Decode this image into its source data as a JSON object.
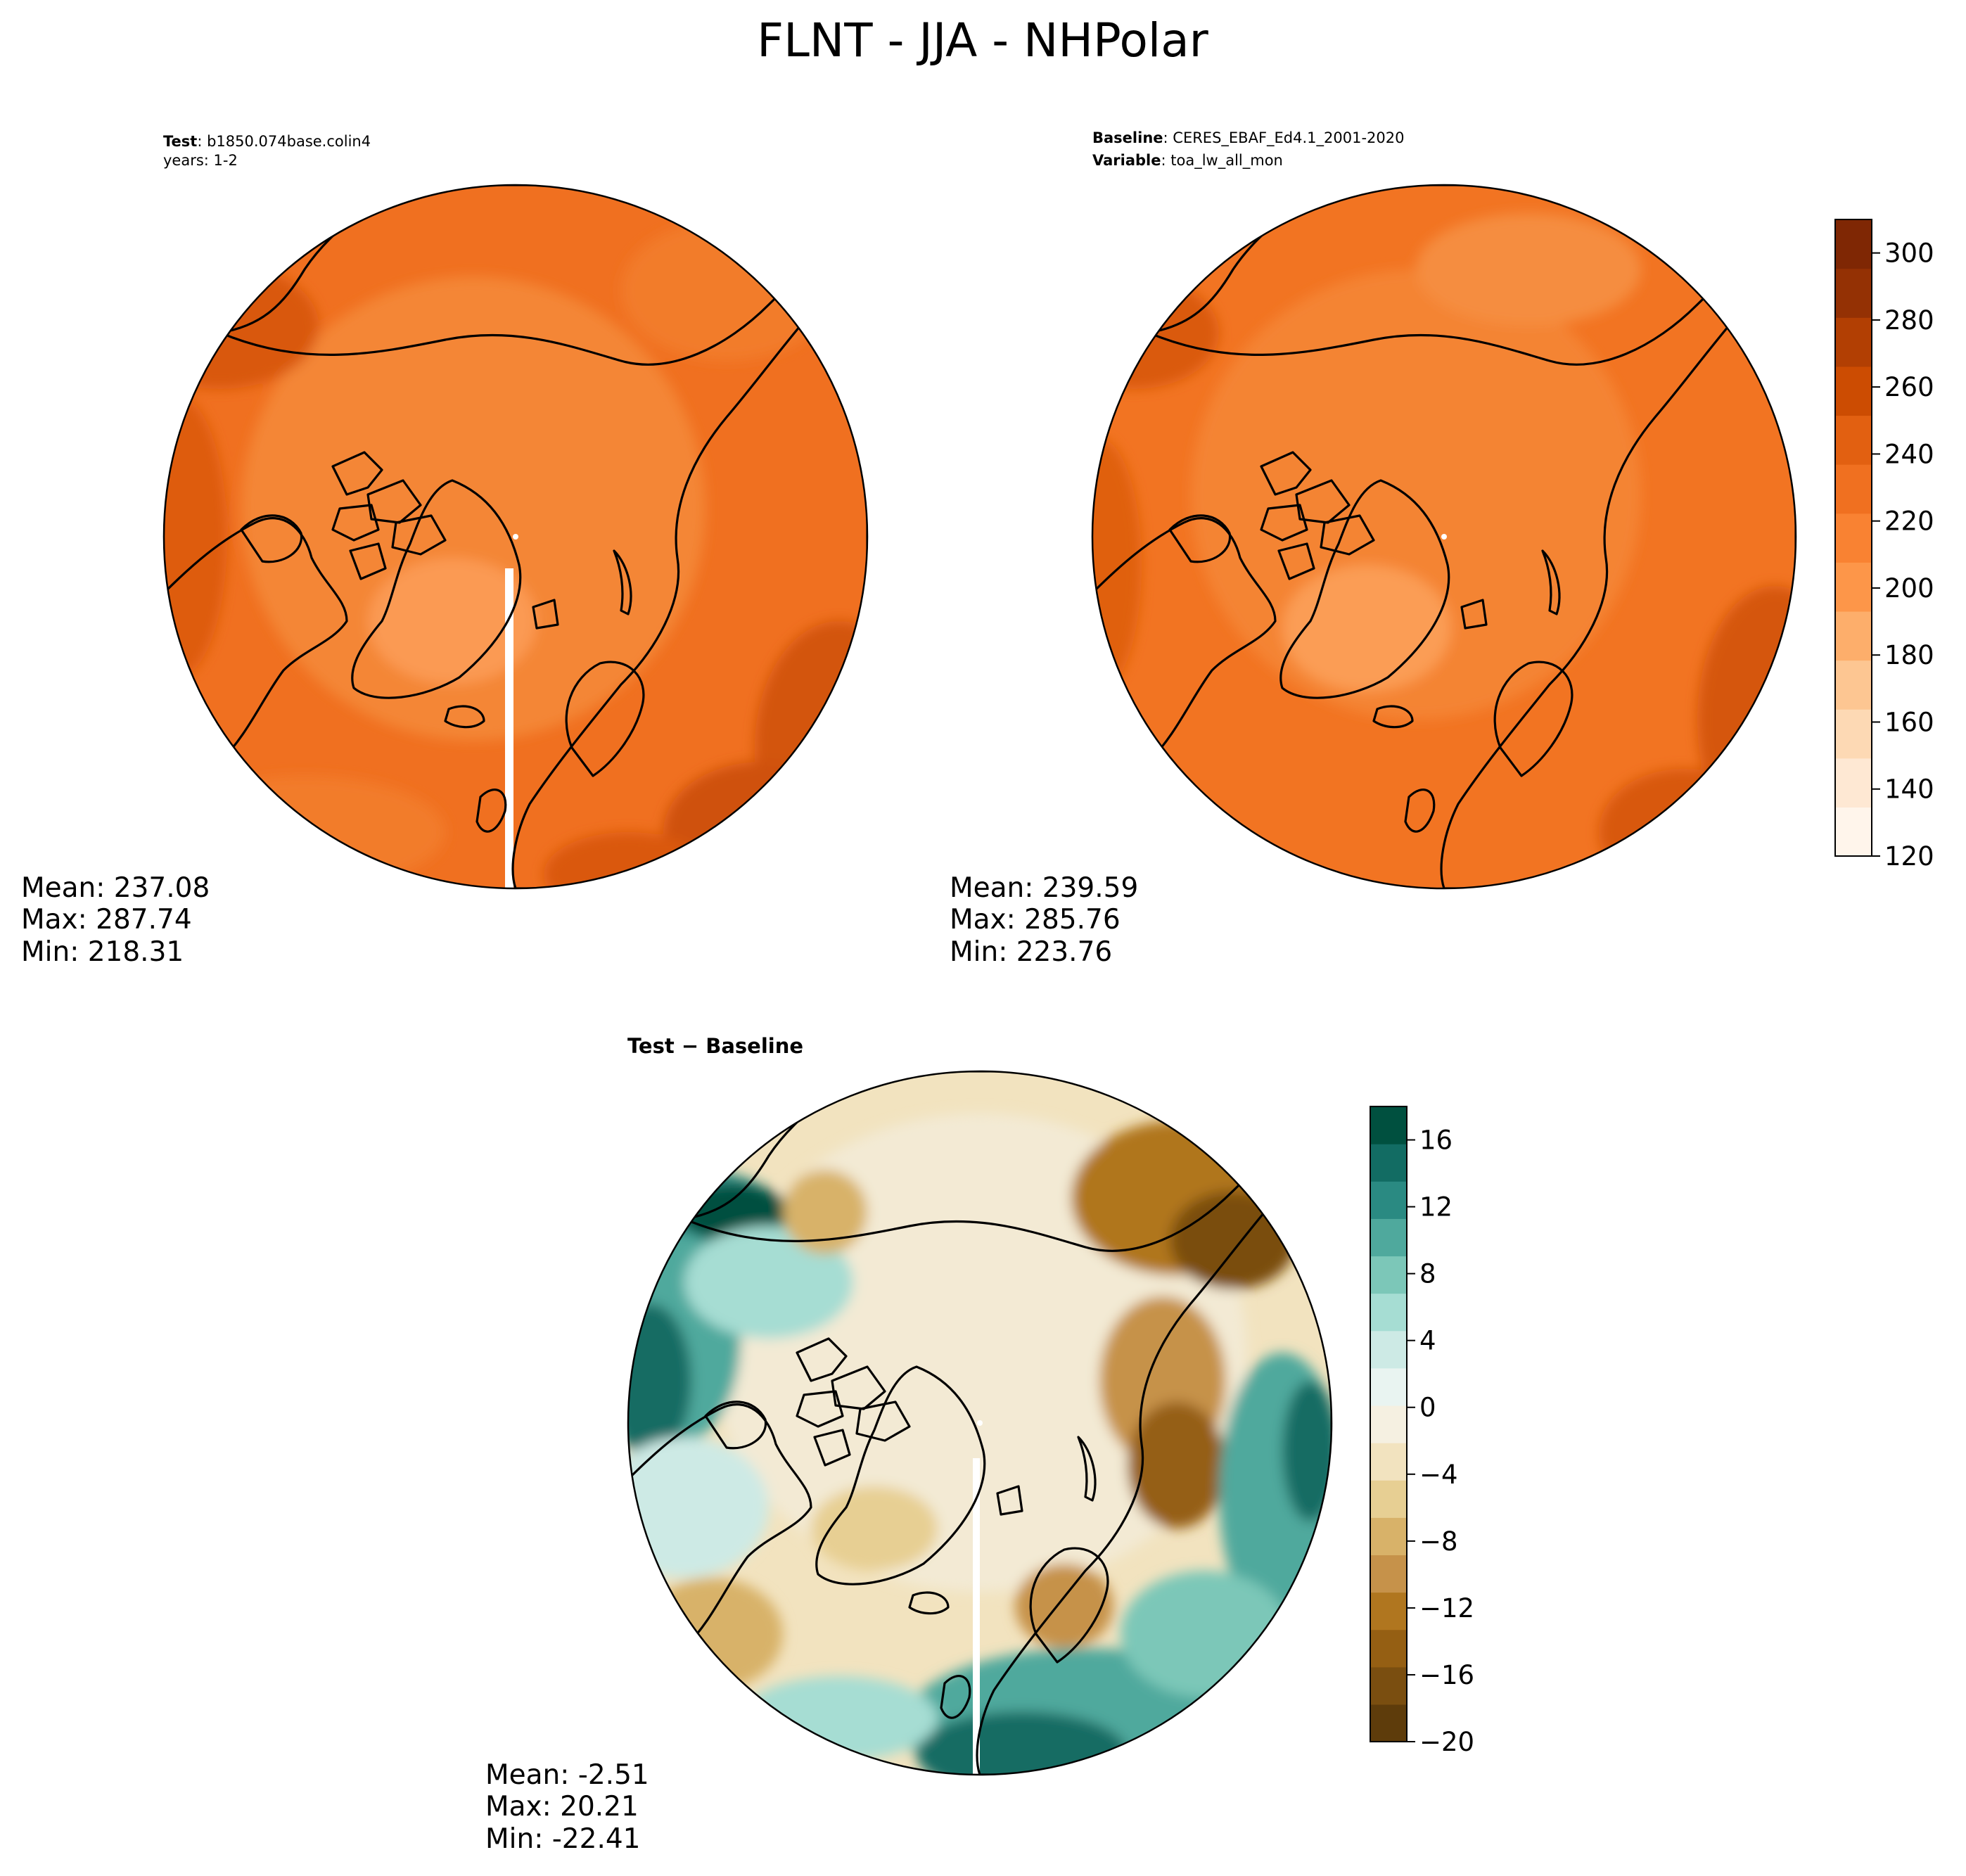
{
  "title": "FLNT - JJA - NHPolar",
  "colors": {
    "oranges": [
      "#fff5eb",
      "#fee8d3",
      "#fdd9b4",
      "#fdc692",
      "#fdae6b",
      "#fd9649",
      "#f98232",
      "#f07020",
      "#e26011",
      "#cc4c02",
      "#b23f03",
      "#943104",
      "#7f2704"
    ],
    "brbg_neg": [
      "#5e3c0b",
      "#7a4e10",
      "#955f13",
      "#b0761f",
      "#c6924a",
      "#d8b269",
      "#e7cf93",
      "#f2e3bf",
      "#f5f0e1"
    ],
    "brbg_pos": [
      "#e9f4f1",
      "#cdeae5",
      "#a6ddd3",
      "#7cc7b8",
      "#4fa99d",
      "#2a8a82",
      "#126c63",
      "#00503f"
    ],
    "ocean_test": "#f07020",
    "land_test": "#f58a3a",
    "ocean_base": "#f27422",
    "land_base": "#f48a3c"
  },
  "panels": {
    "test": {
      "label_bold": "Test",
      "label_value": "b1850.074base.colin4",
      "line2": "years: 1-2",
      "stats": {
        "mean": "Mean: 237.08",
        "max": "Max: 287.74",
        "min": "Min: 218.31"
      }
    },
    "baseline": {
      "label_bold": "Baseline",
      "label_value": "CERES_EBAF_Ed4.1_2001-2020",
      "label2_bold": "Variable",
      "label2_value": "toa_lw_all_mon",
      "stats": {
        "mean": "Mean: 239.59",
        "max": "Max: 285.76",
        "min": "Min: 223.76"
      }
    },
    "diff": {
      "title": "Test − Baseline",
      "stats": {
        "mean": "Mean: -2.51",
        "max": "Max: 20.21",
        "min": "Min: -22.41"
      }
    }
  },
  "chart_data": [
    {
      "type": "heatmap",
      "name": "Test",
      "projection": "north polar stereographic",
      "mean": 237.08,
      "max": 287.74,
      "min": 218.31,
      "colorbar": {
        "range": [
          120,
          310
        ],
        "ticks": [
          "120",
          "140",
          "160",
          "180",
          "200",
          "220",
          "240",
          "260",
          "280",
          "300"
        ],
        "colormap": "Oranges"
      }
    },
    {
      "type": "heatmap",
      "name": "Baseline",
      "projection": "north polar stereographic",
      "mean": 239.59,
      "max": 285.76,
      "min": 223.76,
      "colorbar": {
        "range": [
          120,
          310
        ],
        "ticks": [
          "120",
          "140",
          "160",
          "180",
          "200",
          "220",
          "240",
          "260",
          "280",
          "300"
        ],
        "colormap": "Oranges"
      }
    },
    {
      "type": "heatmap",
      "name": "Test − Baseline",
      "projection": "north polar stereographic",
      "mean": -2.51,
      "max": 20.21,
      "min": -22.41,
      "colorbar": {
        "range": [
          -20,
          18
        ],
        "ticks": [
          "16",
          "12",
          "8",
          "4",
          "0",
          "−4",
          "−8",
          "−12",
          "−16",
          "−20"
        ],
        "colormap": "BrBG"
      }
    }
  ]
}
